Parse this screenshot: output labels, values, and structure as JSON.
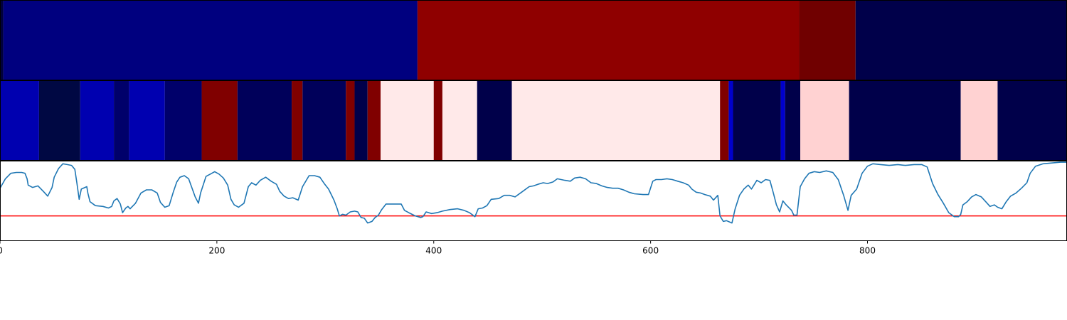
{
  "chart_data": [
    {
      "type": "heatmap",
      "panel": "top-segmentation",
      "x_range": [
        0,
        984
      ],
      "segments": [
        {
          "start": 0,
          "end": 3,
          "color": "#00003c"
        },
        {
          "start": 3,
          "end": 385,
          "color": "#00007f"
        },
        {
          "start": 385,
          "end": 737,
          "color": "#8f0000"
        },
        {
          "start": 737,
          "end": 789,
          "color": "#700000"
        },
        {
          "start": 789,
          "end": 984,
          "color": "#00004a"
        }
      ]
    },
    {
      "type": "heatmap",
      "panel": "middle-segmentation",
      "x_range": [
        0,
        984
      ],
      "segments": [
        {
          "start": 0,
          "end": 36,
          "color": "#0000b0"
        },
        {
          "start": 36,
          "end": 74,
          "color": "#000843"
        },
        {
          "start": 74,
          "end": 105,
          "color": "#0000b0"
        },
        {
          "start": 105,
          "end": 119,
          "color": "#00006a"
        },
        {
          "start": 119,
          "end": 152,
          "color": "#0000b0"
        },
        {
          "start": 152,
          "end": 186,
          "color": "#00006a"
        },
        {
          "start": 186,
          "end": 219,
          "color": "#800000"
        },
        {
          "start": 219,
          "end": 269,
          "color": "#00005a"
        },
        {
          "start": 269,
          "end": 279,
          "color": "#800000"
        },
        {
          "start": 279,
          "end": 319,
          "color": "#00005a"
        },
        {
          "start": 319,
          "end": 327,
          "color": "#800000"
        },
        {
          "start": 327,
          "end": 339,
          "color": "#00004a"
        },
        {
          "start": 339,
          "end": 351,
          "color": "#800000"
        },
        {
          "start": 351,
          "end": 400,
          "color": "#ffe9e9"
        },
        {
          "start": 400,
          "end": 408,
          "color": "#800000"
        },
        {
          "start": 408,
          "end": 440,
          "color": "#ffe9e9"
        },
        {
          "start": 440,
          "end": 472,
          "color": "#00004a"
        },
        {
          "start": 472,
          "end": 664,
          "color": "#ffe9e9"
        },
        {
          "start": 664,
          "end": 672,
          "color": "#800000"
        },
        {
          "start": 672,
          "end": 676,
          "color": "#0000cc"
        },
        {
          "start": 676,
          "end": 720,
          "color": "#00004a"
        },
        {
          "start": 720,
          "end": 724,
          "color": "#0000cc"
        },
        {
          "start": 724,
          "end": 738,
          "color": "#00004a"
        },
        {
          "start": 738,
          "end": 783,
          "color": "#ffd2d2"
        },
        {
          "start": 783,
          "end": 886,
          "color": "#00004a"
        },
        {
          "start": 886,
          "end": 920,
          "color": "#ffd2d2"
        },
        {
          "start": 920,
          "end": 984,
          "color": "#00004a"
        }
      ]
    },
    {
      "type": "line",
      "panel": "signal",
      "x_range": [
        0,
        984
      ],
      "y_range": [
        0,
        100
      ],
      "threshold": 31,
      "threshold_color": "#ff0000",
      "series_color": "#1f77b4",
      "series": [
        {
          "values": [
            [
              0,
              66
            ],
            [
              5,
              78
            ],
            [
              10,
              85
            ],
            [
              15,
              86
            ],
            [
              20,
              86
            ],
            [
              23,
              85
            ],
            [
              25,
              78
            ],
            [
              26,
              70
            ],
            [
              30,
              67
            ],
            [
              35,
              69
            ],
            [
              40,
              62
            ],
            [
              44,
              56
            ],
            [
              48,
              67
            ],
            [
              50,
              80
            ],
            [
              54,
              91
            ],
            [
              58,
              97
            ],
            [
              62,
              96
            ],
            [
              66,
              95
            ],
            [
              69,
              90
            ],
            [
              71,
              72
            ],
            [
              73,
              52
            ],
            [
              75,
              65
            ],
            [
              80,
              68
            ],
            [
              81,
              60
            ],
            [
              83,
              49
            ],
            [
              88,
              44
            ],
            [
              95,
              43
            ],
            [
              100,
              41
            ],
            [
              103,
              43
            ],
            [
              105,
              50
            ],
            [
              108,
              53
            ],
            [
              111,
              46
            ],
            [
              113,
              35
            ],
            [
              116,
              41
            ],
            [
              118,
              43
            ],
            [
              120,
              40
            ],
            [
              125,
              47
            ],
            [
              130,
              60
            ],
            [
              135,
              64
            ],
            [
              140,
              64
            ],
            [
              145,
              60
            ],
            [
              148,
              48
            ],
            [
              152,
              42
            ],
            [
              156,
              44
            ],
            [
              160,
              62
            ],
            [
              163,
              74
            ],
            [
              166,
              80
            ],
            [
              170,
              82
            ],
            [
              174,
              78
            ],
            [
              180,
              55
            ],
            [
              183,
              47
            ],
            [
              185,
              60
            ],
            [
              190,
              81
            ],
            [
              194,
              84
            ],
            [
              198,
              87
            ],
            [
              202,
              84
            ],
            [
              206,
              79
            ],
            [
              210,
              70
            ],
            [
              213,
              52
            ],
            [
              216,
              45
            ],
            [
              220,
              42
            ],
            [
              225,
              47
            ],
            [
              229,
              68
            ],
            [
              232,
              73
            ],
            [
              236,
              70
            ],
            [
              240,
              76
            ],
            [
              245,
              80
            ],
            [
              250,
              75
            ],
            [
              255,
              71
            ],
            [
              258,
              62
            ],
            [
              262,
              56
            ],
            [
              266,
              53
            ],
            [
              270,
              54
            ],
            [
              275,
              51
            ],
            [
              279,
              68
            ],
            [
              285,
              82
            ],
            [
              290,
              82
            ],
            [
              295,
              80
            ],
            [
              299,
              72
            ],
            [
              303,
              65
            ],
            [
              308,
              51
            ],
            [
              311,
              40
            ],
            [
              313,
              31
            ],
            [
              316,
              33
            ],
            [
              319,
              32
            ],
            [
              323,
              36
            ],
            [
              327,
              37
            ],
            [
              330,
              36
            ],
            [
              333,
              29
            ],
            [
              336,
              28
            ],
            [
              339,
              22
            ],
            [
              343,
              24
            ],
            [
              346,
              29
            ],
            [
              349,
              32
            ],
            [
              352,
              39
            ],
            [
              356,
              46
            ],
            [
              361,
              46
            ],
            [
              370,
              46
            ],
            [
              373,
              38
            ],
            [
              377,
              35
            ],
            [
              383,
              31
            ],
            [
              388,
              29
            ],
            [
              390,
              30
            ],
            [
              393,
              36
            ],
            [
              398,
              34
            ],
            [
              403,
              35
            ],
            [
              408,
              37
            ],
            [
              415,
              39
            ],
            [
              422,
              40
            ],
            [
              428,
              38
            ],
            [
              433,
              35
            ],
            [
              438,
              30
            ],
            [
              441,
              40
            ],
            [
              445,
              41
            ],
            [
              449,
              44
            ],
            [
              453,
              52
            ],
            [
              460,
              53
            ],
            [
              465,
              57
            ],
            [
              470,
              57
            ],
            [
              475,
              55
            ],
            [
              481,
              61
            ],
            [
              488,
              68
            ],
            [
              492,
              69
            ],
            [
              496,
              71
            ],
            [
              501,
              73
            ],
            [
              505,
              72
            ],
            [
              510,
              74
            ],
            [
              514,
              78
            ],
            [
              521,
              76
            ],
            [
              526,
              75
            ],
            [
              530,
              79
            ],
            [
              535,
              80
            ],
            [
              540,
              78
            ],
            [
              545,
              73
            ],
            [
              550,
              72
            ],
            [
              555,
              69
            ],
            [
              560,
              67
            ],
            [
              565,
              66
            ],
            [
              570,
              66
            ],
            [
              575,
              64
            ],
            [
              580,
              61
            ],
            [
              585,
              59
            ],
            [
              593,
              58
            ],
            [
              598,
              58
            ],
            [
              602,
              75
            ],
            [
              605,
              77
            ],
            [
              610,
              77
            ],
            [
              615,
              78
            ],
            [
              620,
              77
            ],
            [
              625,
              75
            ],
            [
              630,
              73
            ],
            [
              635,
              70
            ],
            [
              638,
              65
            ],
            [
              642,
              61
            ],
            [
              646,
              60
            ],
            [
              650,
              58
            ],
            [
              655,
              56
            ],
            [
              658,
              51
            ],
            [
              662,
              57
            ],
            [
              664,
              31
            ],
            [
              667,
              24
            ],
            [
              670,
              25
            ],
            [
              675,
              22
            ],
            [
              678,
              40
            ],
            [
              682,
              57
            ],
            [
              686,
              65
            ],
            [
              690,
              70
            ],
            [
              693,
              65
            ],
            [
              698,
              76
            ],
            [
              702,
              73
            ],
            [
              706,
              77
            ],
            [
              710,
              76
            ],
            [
              713,
              61
            ],
            [
              716,
              45
            ],
            [
              719,
              36
            ],
            [
              722,
              50
            ],
            [
              725,
              45
            ],
            [
              730,
              38
            ],
            [
              732,
              32
            ],
            [
              735,
              32
            ],
            [
              738,
              68
            ],
            [
              742,
              78
            ],
            [
              746,
              85
            ],
            [
              751,
              87
            ],
            [
              756,
              86
            ],
            [
              762,
              88
            ],
            [
              768,
              86
            ],
            [
              773,
              77
            ],
            [
              778,
              57
            ],
            [
              782,
              38
            ],
            [
              785,
              57
            ],
            [
              790,
              65
            ],
            [
              795,
              85
            ],
            [
              800,
              94
            ],
            [
              805,
              97
            ],
            [
              812,
              96
            ],
            [
              820,
              95
            ],
            [
              828,
              96
            ],
            [
              835,
              95
            ],
            [
              843,
              96
            ],
            [
              850,
              96
            ],
            [
              855,
              93
            ],
            [
              860,
              72
            ],
            [
              865,
              58
            ],
            [
              870,
              47
            ],
            [
              875,
              35
            ],
            [
              880,
              30
            ],
            [
              884,
              30
            ],
            [
              886,
              33
            ],
            [
              888,
              45
            ],
            [
              892,
              49
            ],
            [
              896,
              55
            ],
            [
              900,
              58
            ],
            [
              905,
              55
            ],
            [
              909,
              49
            ],
            [
              913,
              43
            ],
            [
              917,
              45
            ],
            [
              920,
              42
            ],
            [
              924,
              40
            ],
            [
              928,
              49
            ],
            [
              932,
              56
            ],
            [
              937,
              60
            ],
            [
              942,
              66
            ],
            [
              947,
              73
            ],
            [
              950,
              85
            ],
            [
              955,
              94
            ],
            [
              962,
              97
            ],
            [
              970,
              98
            ],
            [
              978,
              99
            ],
            [
              984,
              99
            ]
          ]
        }
      ]
    }
  ],
  "x_axis": {
    "ticks": [
      {
        "value": 0,
        "label": "0"
      },
      {
        "value": 200,
        "label": "200"
      },
      {
        "value": 400,
        "label": "400"
      },
      {
        "value": 600,
        "label": "600"
      },
      {
        "value": 800,
        "label": "800"
      }
    ]
  }
}
